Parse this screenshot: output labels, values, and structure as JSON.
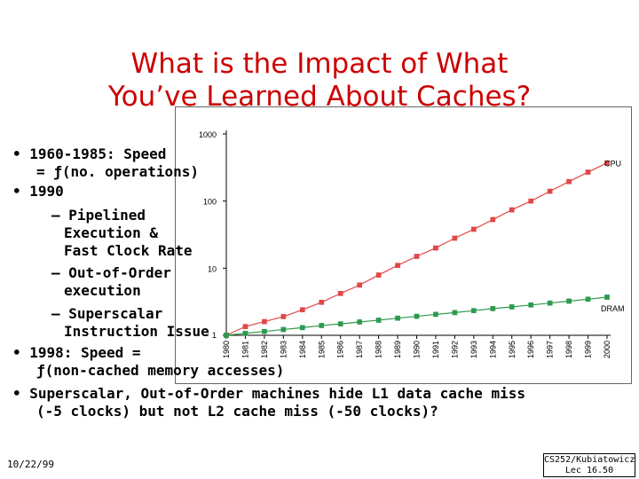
{
  "title": {
    "line1": "What is the Impact of What",
    "line2": "You’ve Learned About Caches?"
  },
  "bullets": {
    "b1_line1": "• 1960-1985: Speed",
    "b1_line2": "= ƒ(no. operations)",
    "b2": "• 1990",
    "b2_s1_line1": "– Pipelined",
    "b2_s1_line2": "Execution &",
    "b2_s1_line3": "Fast Clock Rate",
    "b2_s2_line1": "– Out-of-Order",
    "b2_s2_line2": "execution",
    "b2_s3_line1": "– Superscalar",
    "b2_s3_line2": "Instruction Issue",
    "b3_line1": "• 1998: Speed =",
    "b3_line2": "ƒ(non-cached memory accesses)",
    "b4_line1": "• Superscalar, Out-of-Order machines hide L1 data cache miss",
    "b4_line2": "(-5 clocks) but not L2 cache miss (-50 clocks)?"
  },
  "footer": {
    "date": "10/22/99",
    "course": "CS252/Kubiatowicz",
    "lecture": "Lec 16.50"
  },
  "colors": {
    "title": "#cc0000",
    "cpu": "#e04848",
    "dram": "#2e9a4e"
  },
  "chart_data": {
    "type": "line",
    "scale": "log",
    "ylim": [
      1,
      1000
    ],
    "y_ticks": [
      "1",
      "10",
      "100",
      "1000"
    ],
    "x": [
      "1980",
      "1981",
      "1982",
      "1983",
      "1984",
      "1985",
      "1986",
      "1987",
      "1988",
      "1989",
      "1990",
      "1991",
      "1992",
      "1993",
      "1994",
      "1995",
      "1996",
      "1997",
      "1998",
      "1999",
      "2000"
    ],
    "series": [
      {
        "name": "CPU",
        "values": [
          1,
          1.35,
          1.6,
          1.9,
          2.4,
          3.1,
          4.2,
          5.6,
          7.9,
          11,
          15,
          20,
          28,
          38,
          53,
          74,
          100,
          140,
          195,
          270,
          370
        ]
      },
      {
        "name": "DRAM",
        "values": [
          1,
          1.07,
          1.14,
          1.22,
          1.3,
          1.4,
          1.48,
          1.58,
          1.68,
          1.8,
          1.92,
          2.05,
          2.18,
          2.33,
          2.5,
          2.65,
          2.83,
          3.02,
          3.23,
          3.45,
          3.7
        ]
      }
    ]
  }
}
